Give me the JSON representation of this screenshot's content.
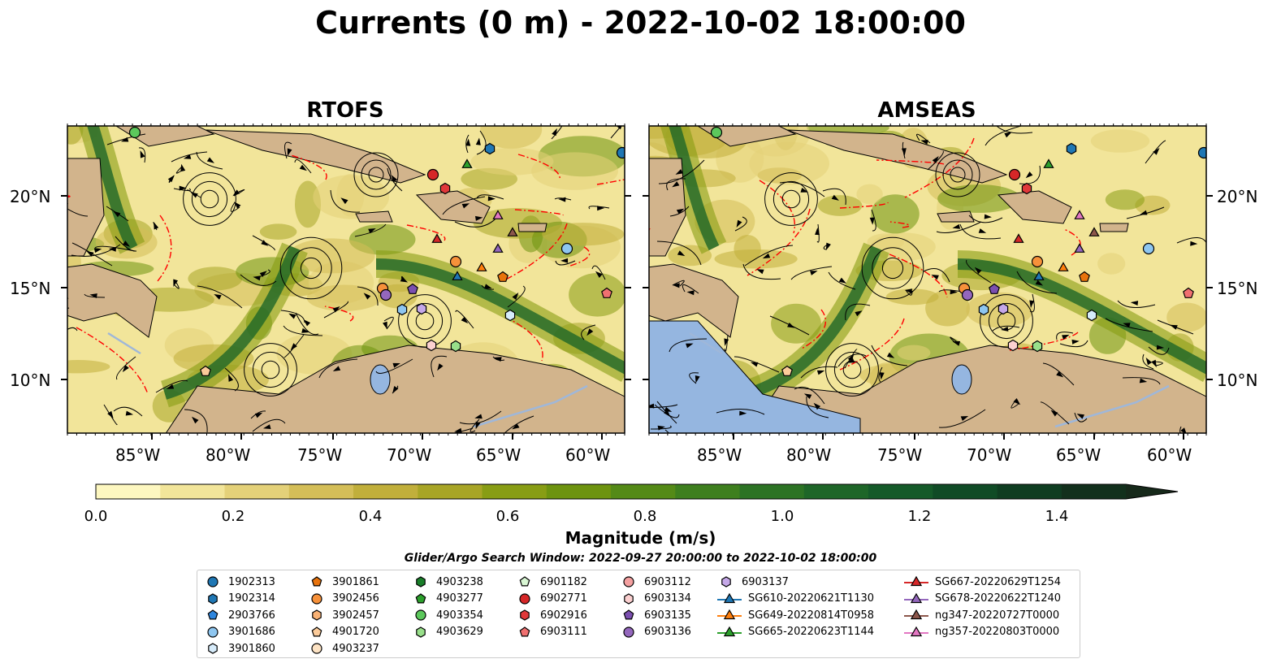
{
  "title": "Currents (0 m) - 2022-10-02 18:00:00",
  "panels": [
    {
      "title": "RTOFS"
    },
    {
      "title": "AMSEAS"
    }
  ],
  "axes": {
    "lon_labels": [
      "85°W",
      "80°W",
      "75°W",
      "70°W",
      "65°W",
      "60°W"
    ],
    "lat_labels": [
      "20°N",
      "15°N",
      "10°N"
    ]
  },
  "colorbar": {
    "label": "Magnitude (m/s)",
    "ticks": [
      "0.0",
      "0.2",
      "0.4",
      "0.6",
      "0.8",
      "1.0",
      "1.2",
      "1.4"
    ],
    "colors": [
      "#fdf7c0",
      "#f2e59a",
      "#e4d179",
      "#d4be58",
      "#c1af3b",
      "#a8a526",
      "#889d14",
      "#6d930f",
      "#548a17",
      "#3e7f1e",
      "#2c7324",
      "#1e6628",
      "#155a29",
      "#104b26",
      "#0f3d21",
      "#12301c",
      "#16291a"
    ]
  },
  "search_window": "Glider/Argo Search Window: 2022-09-27 20:00:00 to 2022-10-02 18:00:00",
  "legend": {
    "columns": [
      [
        {
          "label": "1902313",
          "marker": "circle",
          "color": "#1f77b4"
        },
        {
          "label": "1902314",
          "marker": "hexagon",
          "color": "#1f77b4"
        },
        {
          "label": "2903766",
          "marker": "pentagon",
          "color": "#2e86de"
        },
        {
          "label": "3901686",
          "marker": "circle",
          "color": "#8ec6f0"
        },
        {
          "label": "3901860",
          "marker": "hexagon",
          "color": "#d7ecfb"
        }
      ],
      [
        {
          "label": "3901861",
          "marker": "pentagon",
          "color": "#e8730c"
        },
        {
          "label": "3902456",
          "marker": "circle",
          "color": "#f7913a"
        },
        {
          "label": "3902457",
          "marker": "hexagon",
          "color": "#f9b275"
        },
        {
          "label": "4901720",
          "marker": "pentagon",
          "color": "#fbcb9a"
        },
        {
          "label": "4903237",
          "marker": "circle",
          "color": "#fde3c4"
        }
      ],
      [
        {
          "label": "4903238",
          "marker": "hexagon",
          "color": "#1a7f2a"
        },
        {
          "label": "4903277",
          "marker": "pentagon",
          "color": "#2ca02c"
        },
        {
          "label": "4903354",
          "marker": "circle",
          "color": "#5cc85c"
        },
        {
          "label": "4903629",
          "marker": "hexagon",
          "color": "#98df8a"
        }
      ],
      [
        {
          "label": "6901182",
          "marker": "pentagon",
          "color": "#d9f7d4"
        },
        {
          "label": "6902771",
          "marker": "circle",
          "color": "#d62728"
        },
        {
          "label": "6902916",
          "marker": "hexagon",
          "color": "#e0383a"
        },
        {
          "label": "6903111",
          "marker": "pentagon",
          "color": "#f07070"
        }
      ],
      [
        {
          "label": "6903112",
          "marker": "circle",
          "color": "#f4a0a0"
        },
        {
          "label": "6903134",
          "marker": "hexagon",
          "color": "#fbd0d0"
        },
        {
          "label": "6903135",
          "marker": "pentagon",
          "color": "#7b4fb0"
        },
        {
          "label": "6903136",
          "marker": "circle",
          "color": "#9467bd"
        }
      ],
      [
        {
          "label": "6903137",
          "marker": "hexagon",
          "color": "#c5a8e8"
        },
        {
          "label": "SG610-20220621T1130",
          "marker": "line-triangle",
          "color": "#1f77b4"
        },
        {
          "label": "SG649-20220814T0958",
          "marker": "line-triangle",
          "color": "#ff7f0e"
        },
        {
          "label": "SG665-20220623T1144",
          "marker": "line-triangle",
          "color": "#2ca02c"
        }
      ],
      [
        {
          "label": "SG667-20220629T1254",
          "marker": "line-triangle",
          "color": "#d62728"
        },
        {
          "label": "SG678-20220622T1240",
          "marker": "line-triangle",
          "color": "#9467bd"
        },
        {
          "label": "ng347-20220727T0000",
          "marker": "line-triangle",
          "color": "#8c564b"
        },
        {
          "label": "ng357-20220803T0000",
          "marker": "line-triangle",
          "color": "#e377c2"
        }
      ]
    ]
  },
  "map_colors": {
    "land": "#d2b48c",
    "ocean": "#95b6e0",
    "eez": "#ff0000",
    "river": "#9fb7d9",
    "streamline": "#000000"
  }
}
